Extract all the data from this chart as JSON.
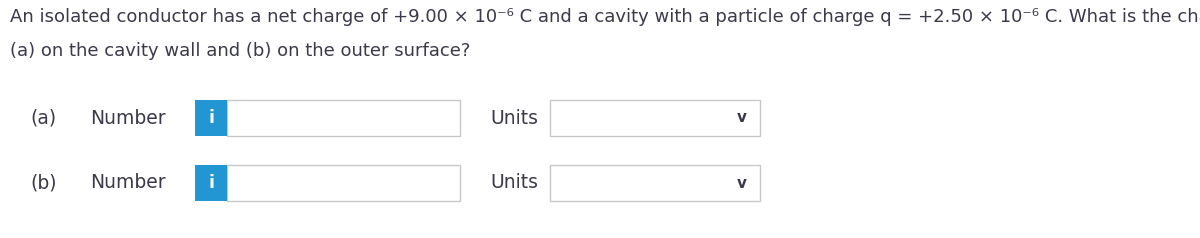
{
  "bg_color": "#ffffff",
  "text_color": "#3a3a4a",
  "title_line1": "An isolated conductor has a net charge of +9.00 × 10⁻⁶ C and a cavity with a particle of charge q = +2.50 × 10⁻⁶ C. What is the charge",
  "title_line2": "(a) on the cavity wall and (b) on the outer surface?",
  "label_a": "(a)",
  "label_b": "(b)",
  "number_text": "Number",
  "units_text": "Units",
  "icon_color": "#2196d3",
  "icon_text": "i",
  "box_border_color": "#c8c8c8",
  "chevron": "v",
  "title_fontsize": 13.0,
  "label_fontsize": 13.5,
  "icon_fontsize": 12.5,
  "chevron_fontsize": 11.0,
  "fig_width": 12.0,
  "fig_height": 2.38,
  "dpi": 100
}
